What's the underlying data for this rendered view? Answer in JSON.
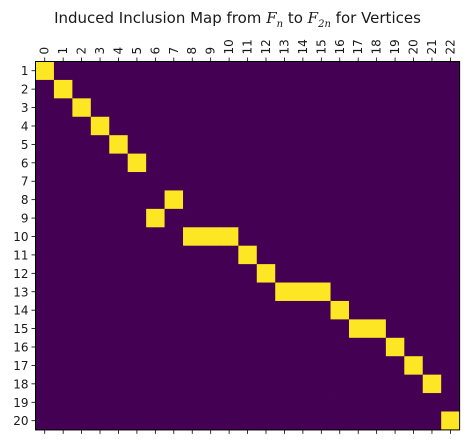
{
  "chart_data": {
    "type": "heatmap",
    "title": "Induced Inclusion Map from $F_n$ to $F_{2n}$ for Vertices",
    "title_parts": {
      "prefix": "Induced Inclusion Map from ",
      "from_var": "F",
      "from_sub": "n",
      "middle": " to ",
      "to_var": "F",
      "to_sub": "2n",
      "suffix": " for Vertices"
    },
    "x_tick_labels": [
      "0",
      "1",
      "2",
      "3",
      "4",
      "5",
      "6",
      "7",
      "8",
      "9",
      "10",
      "11",
      "12",
      "13",
      "14",
      "15",
      "16",
      "17",
      "18",
      "19",
      "20",
      "21",
      "22"
    ],
    "y_tick_labels": [
      "1",
      "2",
      "3",
      "4",
      "5",
      "6",
      "7",
      "8",
      "9",
      "10",
      "11",
      "12",
      "13",
      "14",
      "15",
      "16",
      "17",
      "18",
      "19",
      "20"
    ],
    "x_axis_position": "top",
    "colormap": "viridis",
    "value_colors": {
      "0": "#440154",
      "1": "#fde725"
    },
    "grid": false,
    "matrix": [
      [
        1,
        0,
        0,
        0,
        0,
        0,
        0,
        0,
        0,
        0,
        0,
        0,
        0,
        0,
        0,
        0,
        0,
        0,
        0,
        0,
        0,
        0,
        0
      ],
      [
        0,
        1,
        0,
        0,
        0,
        0,
        0,
        0,
        0,
        0,
        0,
        0,
        0,
        0,
        0,
        0,
        0,
        0,
        0,
        0,
        0,
        0,
        0
      ],
      [
        0,
        0,
        1,
        0,
        0,
        0,
        0,
        0,
        0,
        0,
        0,
        0,
        0,
        0,
        0,
        0,
        0,
        0,
        0,
        0,
        0,
        0,
        0
      ],
      [
        0,
        0,
        0,
        1,
        0,
        0,
        0,
        0,
        0,
        0,
        0,
        0,
        0,
        0,
        0,
        0,
        0,
        0,
        0,
        0,
        0,
        0,
        0
      ],
      [
        0,
        0,
        0,
        0,
        1,
        0,
        0,
        0,
        0,
        0,
        0,
        0,
        0,
        0,
        0,
        0,
        0,
        0,
        0,
        0,
        0,
        0,
        0
      ],
      [
        0,
        0,
        0,
        0,
        0,
        1,
        0,
        0,
        0,
        0,
        0,
        0,
        0,
        0,
        0,
        0,
        0,
        0,
        0,
        0,
        0,
        0,
        0
      ],
      [
        0,
        0,
        0,
        0,
        0,
        0,
        0,
        0,
        0,
        0,
        0,
        0,
        0,
        0,
        0,
        0,
        0,
        0,
        0,
        0,
        0,
        0,
        0
      ],
      [
        0,
        0,
        0,
        0,
        0,
        0,
        0,
        1,
        0,
        0,
        0,
        0,
        0,
        0,
        0,
        0,
        0,
        0,
        0,
        0,
        0,
        0,
        0
      ],
      [
        0,
        0,
        0,
        0,
        0,
        0,
        1,
        0,
        0,
        0,
        0,
        0,
        0,
        0,
        0,
        0,
        0,
        0,
        0,
        0,
        0,
        0,
        0
      ],
      [
        0,
        0,
        0,
        0,
        0,
        0,
        0,
        0,
        1,
        1,
        1,
        0,
        0,
        0,
        0,
        0,
        0,
        0,
        0,
        0,
        0,
        0,
        0
      ],
      [
        0,
        0,
        0,
        0,
        0,
        0,
        0,
        0,
        0,
        0,
        0,
        1,
        0,
        0,
        0,
        0,
        0,
        0,
        0,
        0,
        0,
        0,
        0
      ],
      [
        0,
        0,
        0,
        0,
        0,
        0,
        0,
        0,
        0,
        0,
        0,
        0,
        1,
        0,
        0,
        0,
        0,
        0,
        0,
        0,
        0,
        0,
        0
      ],
      [
        0,
        0,
        0,
        0,
        0,
        0,
        0,
        0,
        0,
        0,
        0,
        0,
        0,
        1,
        1,
        1,
        0,
        0,
        0,
        0,
        0,
        0,
        0
      ],
      [
        0,
        0,
        0,
        0,
        0,
        0,
        0,
        0,
        0,
        0,
        0,
        0,
        0,
        0,
        0,
        0,
        1,
        0,
        0,
        0,
        0,
        0,
        0
      ],
      [
        0,
        0,
        0,
        0,
        0,
        0,
        0,
        0,
        0,
        0,
        0,
        0,
        0,
        0,
        0,
        0,
        0,
        1,
        1,
        0,
        0,
        0,
        0
      ],
      [
        0,
        0,
        0,
        0,
        0,
        0,
        0,
        0,
        0,
        0,
        0,
        0,
        0,
        0,
        0,
        0,
        0,
        0,
        0,
        1,
        0,
        0,
        0
      ],
      [
        0,
        0,
        0,
        0,
        0,
        0,
        0,
        0,
        0,
        0,
        0,
        0,
        0,
        0,
        0,
        0,
        0,
        0,
        0,
        0,
        1,
        0,
        0
      ],
      [
        0,
        0,
        0,
        0,
        0,
        0,
        0,
        0,
        0,
        0,
        0,
        0,
        0,
        0,
        0,
        0,
        0,
        0,
        0,
        0,
        0,
        1,
        0
      ],
      [
        0,
        0,
        0,
        0,
        0,
        0,
        0,
        0,
        0,
        0,
        0,
        0,
        0,
        0,
        0,
        0,
        0,
        0,
        0,
        0,
        0,
        0,
        0
      ],
      [
        0,
        0,
        0,
        0,
        0,
        0,
        0,
        0,
        0,
        0,
        0,
        0,
        0,
        0,
        0,
        0,
        0,
        0,
        0,
        0,
        0,
        0,
        1
      ]
    ]
  }
}
